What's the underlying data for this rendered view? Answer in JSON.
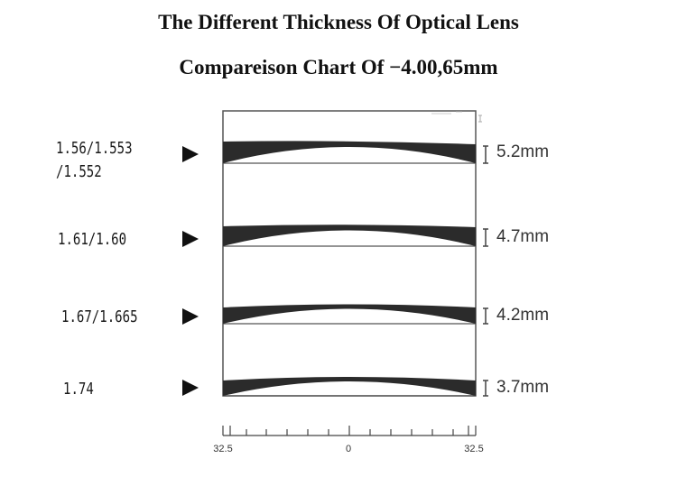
{
  "header": {
    "title": "The Different Thickness Of Optical Lens",
    "subtitle": "Compareison Chart Of −4.00,65mm"
  },
  "lenses": [
    {
      "index_line1": "1.56/1.553",
      "index_line2": "/1.552",
      "thickness": "5.2mm",
      "thickness_mm": 5.2
    },
    {
      "index_line1": "1.61/1.60",
      "index_line2": "",
      "thickness": "4.7mm",
      "thickness_mm": 4.7
    },
    {
      "index_line1": "1.67/1.665",
      "index_line2": "",
      "thickness": "4.2mm",
      "thickness_mm": 4.2
    },
    {
      "index_line1": "1.74",
      "index_line2": "",
      "thickness": "3.7mm",
      "thickness_mm": 3.7
    }
  ],
  "scale": {
    "left": "32.5",
    "center": "0",
    "right": "32.5"
  },
  "colors": {
    "lens": "#2b2b2b",
    "frame": "#555555",
    "text": "#111111"
  }
}
